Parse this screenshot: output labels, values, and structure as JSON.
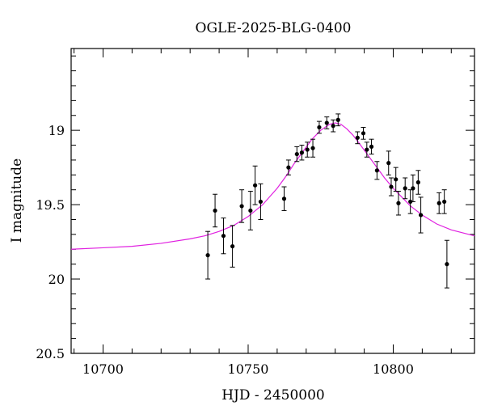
{
  "chart_data": {
    "type": "scatter",
    "title": "OGLE-2025-BLG-0400",
    "xlabel": "HJD - 2450000",
    "ylabel": "I magnitude",
    "xlim": [
      10689,
      10828
    ],
    "ylim": [
      18.45,
      20.5
    ],
    "y_inverted": true,
    "x_ticks": [
      10700,
      10750,
      10800
    ],
    "x_tick_labels": [
      "10700",
      "10750",
      "10800"
    ],
    "y_ticks": [
      19,
      19.5,
      20,
      20.5
    ],
    "y_tick_labels": [
      "19",
      "19.5",
      "20",
      "20.5"
    ],
    "colors": {
      "axes": "#000000",
      "points": "#000000",
      "model": "#e020e0"
    },
    "series": [
      {
        "name": "OGLE data",
        "kind": "errorbar",
        "points": [
          {
            "x": 10736.1,
            "y": 19.84,
            "err": 0.16
          },
          {
            "x": 10738.6,
            "y": 19.54,
            "err": 0.11
          },
          {
            "x": 10741.5,
            "y": 19.71,
            "err": 0.12
          },
          {
            "x": 10744.6,
            "y": 19.78,
            "err": 0.14
          },
          {
            "x": 10747.8,
            "y": 19.51,
            "err": 0.11
          },
          {
            "x": 10750.8,
            "y": 19.54,
            "err": 0.13
          },
          {
            "x": 10752.4,
            "y": 19.37,
            "err": 0.13
          },
          {
            "x": 10754.3,
            "y": 19.48,
            "err": 0.12
          },
          {
            "x": 10762.4,
            "y": 19.46,
            "err": 0.08
          },
          {
            "x": 10763.9,
            "y": 19.25,
            "err": 0.05
          },
          {
            "x": 10766.8,
            "y": 19.16,
            "err": 0.05
          },
          {
            "x": 10768.5,
            "y": 19.15,
            "err": 0.05
          },
          {
            "x": 10770.4,
            "y": 19.13,
            "err": 0.05
          },
          {
            "x": 10772.3,
            "y": 19.12,
            "err": 0.06
          },
          {
            "x": 10774.5,
            "y": 18.98,
            "err": 0.04
          },
          {
            "x": 10777.1,
            "y": 18.95,
            "err": 0.04
          },
          {
            "x": 10779.3,
            "y": 18.97,
            "err": 0.04
          },
          {
            "x": 10781.0,
            "y": 18.93,
            "err": 0.04
          },
          {
            "x": 10787.7,
            "y": 19.05,
            "err": 0.04
          },
          {
            "x": 10789.7,
            "y": 19.02,
            "err": 0.04
          },
          {
            "x": 10790.9,
            "y": 19.13,
            "err": 0.05
          },
          {
            "x": 10792.5,
            "y": 19.11,
            "err": 0.05
          },
          {
            "x": 10794.4,
            "y": 19.27,
            "err": 0.06
          },
          {
            "x": 10798.4,
            "y": 19.22,
            "err": 0.08
          },
          {
            "x": 10799.3,
            "y": 19.38,
            "err": 0.06
          },
          {
            "x": 10800.9,
            "y": 19.33,
            "err": 0.08
          },
          {
            "x": 10801.8,
            "y": 19.49,
            "err": 0.08
          },
          {
            "x": 10804.1,
            "y": 19.39,
            "err": 0.07
          },
          {
            "x": 10805.9,
            "y": 19.48,
            "err": 0.08
          },
          {
            "x": 10806.8,
            "y": 19.39,
            "err": 0.09
          },
          {
            "x": 10808.6,
            "y": 19.35,
            "err": 0.08
          },
          {
            "x": 10809.5,
            "y": 19.57,
            "err": 0.12
          },
          {
            "x": 10815.8,
            "y": 19.49,
            "err": 0.07
          },
          {
            "x": 10817.6,
            "y": 19.48,
            "err": 0.08
          },
          {
            "x": 10818.5,
            "y": 19.9,
            "err": 0.16
          }
        ]
      },
      {
        "name": "model",
        "kind": "line",
        "x": [
          10689,
          10700,
          10710,
          10720,
          10730,
          10735,
          10740,
          10745,
          10750,
          10755,
          10760,
          10763,
          10766,
          10769,
          10772,
          10775,
          10778,
          10780,
          10782,
          10784,
          10786,
          10788,
          10791,
          10794,
          10797,
          10800,
          10803,
          10806,
          10810,
          10815,
          10820,
          10828
        ],
        "y": [
          19.8,
          19.79,
          19.78,
          19.76,
          19.73,
          19.71,
          19.68,
          19.64,
          19.58,
          19.5,
          19.39,
          19.31,
          19.22,
          19.14,
          19.06,
          19.0,
          18.96,
          18.95,
          18.96,
          18.99,
          19.03,
          19.08,
          19.16,
          19.24,
          19.32,
          19.39,
          19.45,
          19.51,
          19.57,
          19.63,
          19.67,
          19.71
        ]
      }
    ]
  }
}
